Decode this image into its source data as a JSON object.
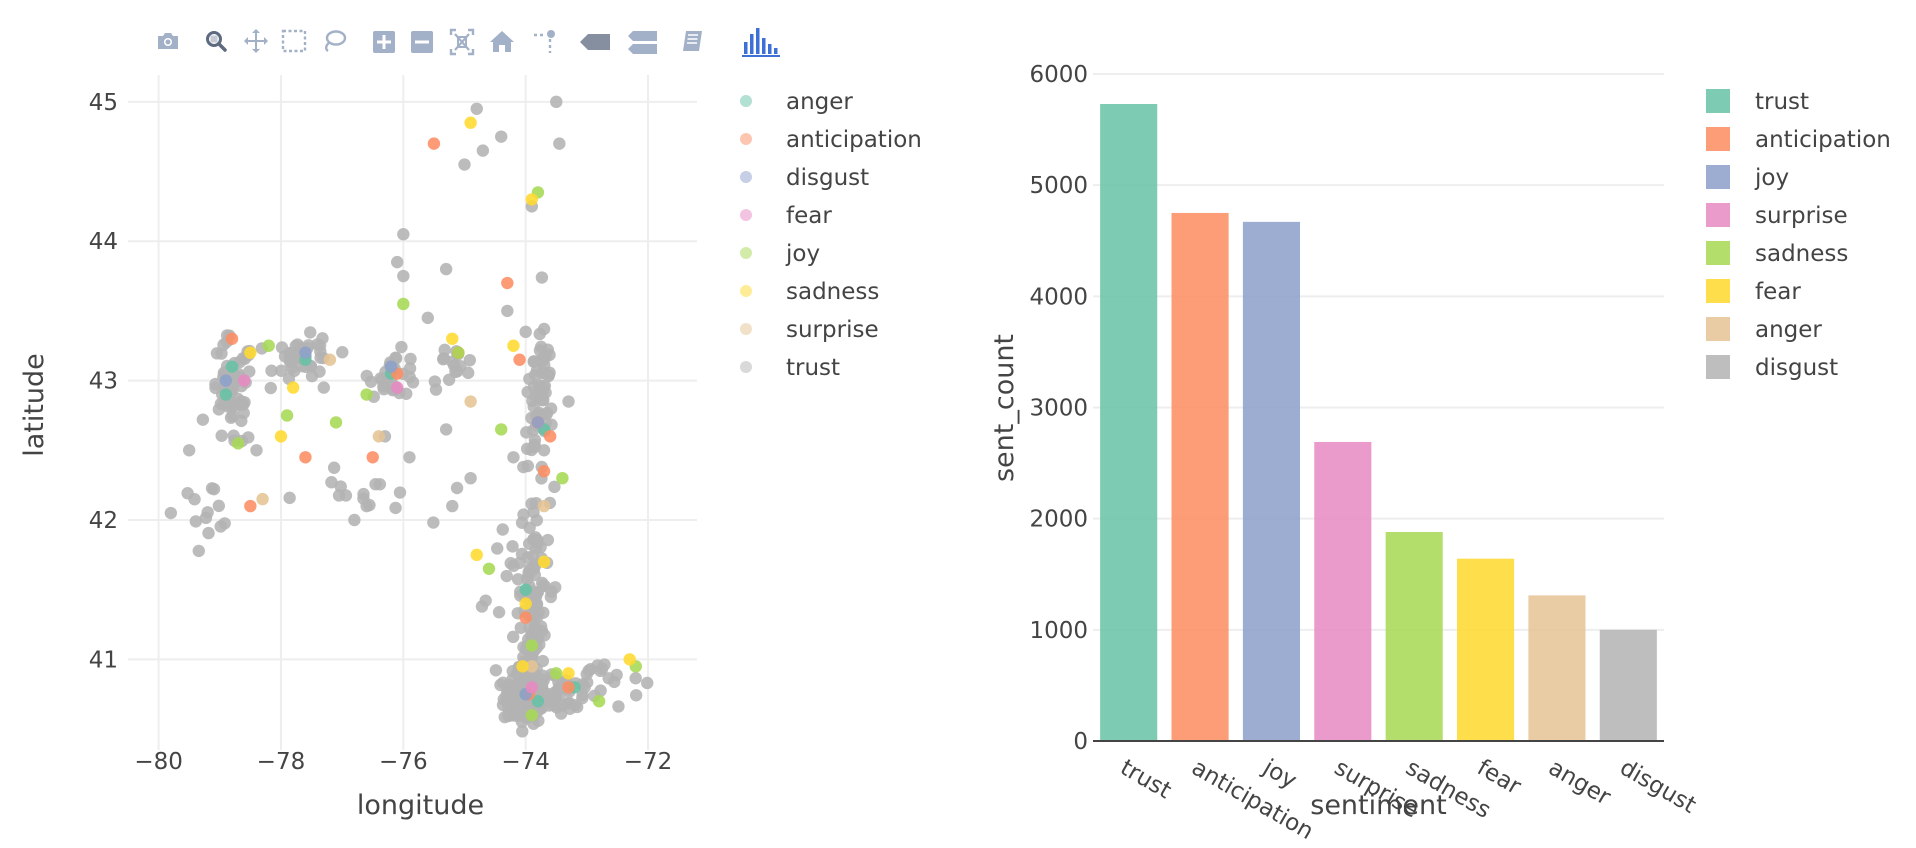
{
  "modebar": {
    "buttons": [
      {
        "name": "camera-icon",
        "label": "Download plot as a png"
      },
      {
        "name": "zoom-icon",
        "label": "Zoom"
      },
      {
        "name": "pan-icon",
        "label": "Pan"
      },
      {
        "name": "box-select-icon",
        "label": "Box Select"
      },
      {
        "name": "lasso-select-icon",
        "label": "Lasso Select"
      },
      {
        "name": "zoom-in-icon",
        "label": "Zoom in"
      },
      {
        "name": "zoom-out-icon",
        "label": "Zoom out"
      },
      {
        "name": "autoscale-icon",
        "label": "Autoscale"
      },
      {
        "name": "reset-axes-icon",
        "label": "Reset axes"
      },
      {
        "name": "toggle-spike-lines-icon",
        "label": "Toggle Spike Lines"
      },
      {
        "name": "hover-closest-icon",
        "label": "Show closest data on hover"
      },
      {
        "name": "hover-compare-icon",
        "label": "Compare data on hover"
      },
      {
        "name": "edit-chart-icon",
        "label": "Edit in Chart Studio"
      },
      {
        "name": "plotly-logo-icon",
        "label": "Produced with Plotly"
      }
    ]
  },
  "chart_data": [
    {
      "type": "scatter",
      "xlabel": "longitude",
      "ylabel": "latitude",
      "xlim": [
        -80.5,
        -71.2
      ],
      "ylim": [
        40.35,
        45.3
      ],
      "xticks": [
        -80,
        -78,
        -76,
        -74,
        -72
      ],
      "yticks": [
        41,
        42,
        43,
        44,
        45
      ],
      "xtick_labels": [
        "−80",
        "−78",
        "−76",
        "−74",
        "−72"
      ],
      "ytick_labels": [
        "41",
        "42",
        "43",
        "44",
        "45"
      ],
      "grid": true,
      "legend_position": "right",
      "legend": [
        "anger",
        "anticipation",
        "disgust",
        "fear",
        "joy",
        "sadness",
        "surprise",
        "trust"
      ],
      "colors": {
        "anger": "#66c2a5",
        "anticipation": "#fc8d62",
        "disgust": "#8da0cb",
        "fear": "#e78ac3",
        "joy": "#a6d854",
        "sadness": "#ffd92f",
        "surprise": "#e5c494",
        "trust": "#b3b3b3"
      },
      "series": [
        {
          "name": "anger",
          "points": [
            [
              -78.8,
              43.1
            ],
            [
              -74.0,
              40.75
            ],
            [
              -73.8,
              40.7
            ],
            [
              -76.2,
              43.05
            ],
            [
              -73.7,
              42.65
            ],
            [
              -78.9,
              42.9
            ],
            [
              -74.0,
              41.5
            ],
            [
              -73.2,
              40.8
            ],
            [
              -77.6,
              43.15
            ]
          ]
        },
        {
          "name": "anticipation",
          "points": [
            [
              -75.5,
              44.7
            ],
            [
              -74.3,
              43.7
            ],
            [
              -74.1,
              43.15
            ],
            [
              -73.7,
              42.35
            ],
            [
              -78.5,
              42.1
            ],
            [
              -77.6,
              42.45
            ],
            [
              -73.95,
              40.75
            ],
            [
              -76.1,
              43.05
            ],
            [
              -73.8,
              42.7
            ],
            [
              -73.6,
              42.6
            ],
            [
              -76.5,
              42.45
            ],
            [
              -74.0,
              41.3
            ],
            [
              -75.1,
              43.2
            ],
            [
              -78.8,
              43.3
            ],
            [
              -73.3,
              40.8
            ]
          ]
        },
        {
          "name": "disgust",
          "points": [
            [
              -78.9,
              43.0
            ],
            [
              -76.2,
              43.1
            ],
            [
              -74.0,
              40.75
            ],
            [
              -73.8,
              42.7
            ],
            [
              -77.6,
              43.2
            ]
          ]
        },
        {
          "name": "fear",
          "points": [
            [
              -78.6,
              43.0
            ],
            [
              -73.9,
              40.8
            ],
            [
              -76.1,
              42.95
            ]
          ]
        },
        {
          "name": "joy",
          "points": [
            [
              -73.8,
              44.35
            ],
            [
              -76.0,
              43.55
            ],
            [
              -77.1,
              42.7
            ],
            [
              -78.7,
              42.55
            ],
            [
              -73.9,
              41.1
            ],
            [
              -73.5,
              40.9
            ],
            [
              -72.8,
              40.7
            ],
            [
              -75.1,
              43.2
            ],
            [
              -74.4,
              42.65
            ],
            [
              -76.6,
              42.9
            ],
            [
              -78.2,
              43.25
            ],
            [
              -74.6,
              41.65
            ],
            [
              -73.4,
              42.3
            ],
            [
              -73.9,
              40.6
            ],
            [
              -72.2,
              40.95
            ],
            [
              -77.9,
              42.75
            ]
          ]
        },
        {
          "name": "sadness",
          "points": [
            [
              -74.9,
              44.85
            ],
            [
              -73.9,
              44.3
            ],
            [
              -74.2,
              43.25
            ],
            [
              -74.0,
              41.4
            ],
            [
              -73.7,
              41.7
            ],
            [
              -78.0,
              42.6
            ],
            [
              -78.5,
              43.2
            ],
            [
              -75.2,
              43.3
            ],
            [
              -73.3,
              40.9
            ],
            [
              -72.3,
              41.0
            ],
            [
              -74.8,
              41.75
            ],
            [
              -77.8,
              42.95
            ],
            [
              -74.05,
              40.95
            ]
          ]
        },
        {
          "name": "surprise",
          "points": [
            [
              -77.2,
              43.15
            ],
            [
              -74.9,
              42.85
            ],
            [
              -73.7,
              42.1
            ],
            [
              -73.9,
              40.95
            ],
            [
              -78.3,
              42.15
            ],
            [
              -76.4,
              42.6
            ]
          ]
        },
        {
          "name": "trust",
          "clusters": [
            {
              "cx": -74.0,
              "cy": 40.72,
              "sx": 0.18,
              "sy": 0.09,
              "n": 130
            },
            {
              "cx": -73.45,
              "cy": 40.78,
              "sx": 0.35,
              "sy": 0.1,
              "n": 40
            },
            {
              "cx": -72.8,
              "cy": 40.87,
              "sx": 0.35,
              "sy": 0.1,
              "n": 18
            },
            {
              "cx": -73.9,
              "cy": 41.05,
              "sx": 0.1,
              "sy": 0.15,
              "n": 35
            },
            {
              "cx": -73.85,
              "cy": 41.6,
              "sx": 0.12,
              "sy": 0.3,
              "n": 60
            },
            {
              "cx": -74.15,
              "cy": 41.45,
              "sx": 0.35,
              "sy": 0.25,
              "n": 25
            },
            {
              "cx": -73.8,
              "cy": 42.75,
              "sx": 0.12,
              "sy": 0.2,
              "n": 45
            },
            {
              "cx": -73.7,
              "cy": 43.15,
              "sx": 0.08,
              "sy": 0.18,
              "n": 18
            },
            {
              "cx": -78.8,
              "cy": 42.9,
              "sx": 0.18,
              "sy": 0.2,
              "n": 60
            },
            {
              "cx": -77.6,
              "cy": 43.15,
              "sx": 0.25,
              "sy": 0.08,
              "n": 40
            },
            {
              "cx": -76.15,
              "cy": 43.05,
              "sx": 0.2,
              "sy": 0.08,
              "n": 30
            },
            {
              "cx": -75.2,
              "cy": 43.1,
              "sx": 0.2,
              "sy": 0.08,
              "n": 15
            },
            {
              "cx": -79.2,
              "cy": 42.1,
              "sx": 0.25,
              "sy": 0.08,
              "n": 12
            },
            {
              "cx": -76.7,
              "cy": 42.15,
              "sx": 0.5,
              "sy": 0.1,
              "n": 15
            }
          ],
          "points": [
            [
              -74.8,
              44.95
            ],
            [
              -73.5,
              45.0
            ],
            [
              -73.45,
              44.7
            ],
            [
              -74.4,
              44.75
            ],
            [
              -74.7,
              44.65
            ],
            [
              -73.9,
              44.25
            ],
            [
              -75.0,
              44.55
            ],
            [
              -76.0,
              44.05
            ],
            [
              -76.1,
              43.85
            ],
            [
              -76.0,
              43.75
            ],
            [
              -75.3,
              43.8
            ],
            [
              -74.3,
              43.5
            ],
            [
              -75.6,
              43.45
            ],
            [
              -74.0,
              43.35
            ],
            [
              -73.3,
              42.85
            ],
            [
              -77.3,
              42.95
            ],
            [
              -75.3,
              42.65
            ],
            [
              -75.2,
              42.1
            ],
            [
              -74.9,
              42.3
            ],
            [
              -76.6,
              42.1
            ],
            [
              -76.8,
              42.0
            ],
            [
              -78.4,
              42.5
            ],
            [
              -79.8,
              42.05
            ],
            [
              -79.5,
              42.5
            ],
            [
              -76.3,
              42.6
            ],
            [
              -74.2,
              42.45
            ],
            [
              -75.9,
              42.45
            ],
            [
              -73.7,
              42.5
            ]
          ]
        }
      ]
    },
    {
      "type": "bar",
      "title": "",
      "xlabel": "sentiment",
      "ylabel": "sent_count",
      "ylim": [
        0,
        6000
      ],
      "yticks": [
        0,
        1000,
        2000,
        3000,
        4000,
        5000,
        6000
      ],
      "grid": true,
      "legend_position": "right",
      "categories": [
        "trust",
        "anticipation",
        "joy",
        "surprise",
        "sadness",
        "fear",
        "anger",
        "disgust"
      ],
      "values": [
        5730,
        4750,
        4670,
        2690,
        1880,
        1640,
        1310,
        1000
      ],
      "colors": [
        "#66c2a5",
        "#fc8d62",
        "#8da0cb",
        "#e78ac3",
        "#a6d854",
        "#ffd92f",
        "#e5c494",
        "#b3b3b3"
      ]
    }
  ]
}
